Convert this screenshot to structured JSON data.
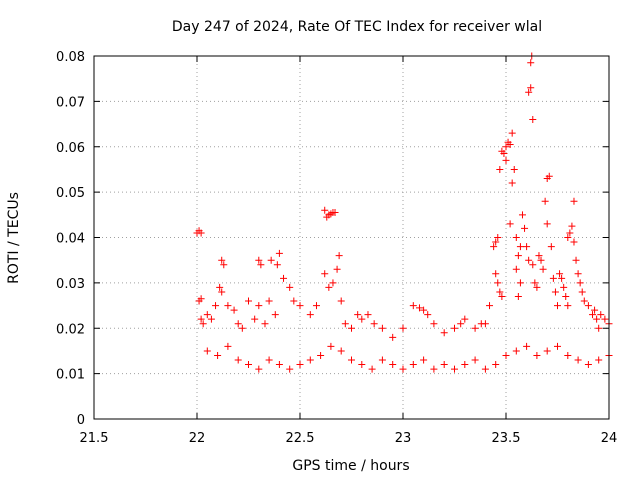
{
  "chart_data": {
    "type": "scatter",
    "title": "Day 247 of 2024, Rate Of TEC Index for receiver wlal",
    "xlabel": "GPS time / hours",
    "ylabel": "ROTI / TECUs",
    "xlim": [
      21.5,
      24
    ],
    "ylim": [
      0,
      0.08
    ],
    "x_ticks": [
      21.5,
      22,
      22.5,
      23,
      23.5,
      24
    ],
    "y_ticks": [
      0,
      0.01,
      0.02,
      0.03,
      0.04,
      0.05,
      0.06,
      0.07,
      0.08
    ],
    "x_tick_labels": [
      "21.5",
      "22",
      "22.5",
      "23",
      "23.5",
      "24"
    ],
    "y_tick_labels": [
      "0",
      "0.01",
      "0.02",
      "0.03",
      "0.04",
      "0.05",
      "0.06",
      "0.07",
      "0.08"
    ],
    "grid": true,
    "marker": "+",
    "marker_color": "#ff0000",
    "series": [
      {
        "name": "ROTI",
        "points": [
          [
            22.0,
            0.041
          ],
          [
            22.01,
            0.0415
          ],
          [
            22.02,
            0.041
          ],
          [
            22.01,
            0.026
          ],
          [
            22.02,
            0.0265
          ],
          [
            22.02,
            0.022
          ],
          [
            22.03,
            0.021
          ],
          [
            22.05,
            0.023
          ],
          [
            22.07,
            0.022
          ],
          [
            22.09,
            0.025
          ],
          [
            22.11,
            0.029
          ],
          [
            22.12,
            0.028
          ],
          [
            22.12,
            0.035
          ],
          [
            22.13,
            0.034
          ],
          [
            22.15,
            0.025
          ],
          [
            22.18,
            0.024
          ],
          [
            22.2,
            0.021
          ],
          [
            22.22,
            0.02
          ],
          [
            22.25,
            0.026
          ],
          [
            22.28,
            0.022
          ],
          [
            22.3,
            0.025
          ],
          [
            22.33,
            0.021
          ],
          [
            22.35,
            0.026
          ],
          [
            22.38,
            0.023
          ],
          [
            22.3,
            0.035
          ],
          [
            22.31,
            0.034
          ],
          [
            22.36,
            0.035
          ],
          [
            22.39,
            0.034
          ],
          [
            22.4,
            0.0365
          ],
          [
            22.42,
            0.031
          ],
          [
            22.45,
            0.029
          ],
          [
            22.47,
            0.026
          ],
          [
            22.5,
            0.025
          ],
          [
            22.55,
            0.023
          ],
          [
            22.58,
            0.025
          ],
          [
            22.62,
            0.046
          ],
          [
            22.63,
            0.0445
          ],
          [
            22.64,
            0.045
          ],
          [
            22.65,
            0.0452
          ],
          [
            22.66,
            0.0455
          ],
          [
            22.67,
            0.0455
          ],
          [
            22.62,
            0.032
          ],
          [
            22.64,
            0.029
          ],
          [
            22.66,
            0.03
          ],
          [
            22.68,
            0.033
          ],
          [
            22.69,
            0.036
          ],
          [
            22.7,
            0.026
          ],
          [
            22.72,
            0.021
          ],
          [
            22.75,
            0.02
          ],
          [
            22.78,
            0.023
          ],
          [
            22.8,
            0.022
          ],
          [
            22.83,
            0.023
          ],
          [
            22.86,
            0.021
          ],
          [
            22.9,
            0.02
          ],
          [
            22.95,
            0.018
          ],
          [
            23.0,
            0.02
          ],
          [
            23.05,
            0.025
          ],
          [
            23.08,
            0.0245
          ],
          [
            23.1,
            0.024
          ],
          [
            23.12,
            0.023
          ],
          [
            23.15,
            0.021
          ],
          [
            23.2,
            0.019
          ],
          [
            23.25,
            0.02
          ],
          [
            23.28,
            0.021
          ],
          [
            23.3,
            0.022
          ],
          [
            23.35,
            0.02
          ],
          [
            23.38,
            0.021
          ],
          [
            23.4,
            0.021
          ],
          [
            23.42,
            0.025
          ],
          [
            23.44,
            0.038
          ],
          [
            23.45,
            0.039
          ],
          [
            23.46,
            0.04
          ],
          [
            23.45,
            0.032
          ],
          [
            23.46,
            0.03
          ],
          [
            23.47,
            0.028
          ],
          [
            23.48,
            0.027
          ],
          [
            23.47,
            0.055
          ],
          [
            23.48,
            0.059
          ],
          [
            23.49,
            0.0585
          ],
          [
            23.5,
            0.057
          ],
          [
            23.5,
            0.06
          ],
          [
            23.51,
            0.061
          ],
          [
            23.52,
            0.0605
          ],
          [
            23.53,
            0.063
          ],
          [
            23.53,
            0.052
          ],
          [
            23.54,
            0.055
          ],
          [
            23.52,
            0.043
          ],
          [
            23.55,
            0.04
          ],
          [
            23.57,
            0.038
          ],
          [
            23.56,
            0.036
          ],
          [
            23.55,
            0.033
          ],
          [
            23.56,
            0.027
          ],
          [
            23.57,
            0.03
          ],
          [
            23.58,
            0.045
          ],
          [
            23.59,
            0.042
          ],
          [
            23.6,
            0.038
          ],
          [
            23.61,
            0.035
          ],
          [
            23.61,
            0.072
          ],
          [
            23.62,
            0.073
          ],
          [
            23.62,
            0.0785
          ],
          [
            23.625,
            0.08
          ],
          [
            23.63,
            0.066
          ],
          [
            23.63,
            0.034
          ],
          [
            23.64,
            0.03
          ],
          [
            23.65,
            0.029
          ],
          [
            23.66,
            0.036
          ],
          [
            23.67,
            0.035
          ],
          [
            23.68,
            0.033
          ],
          [
            23.69,
            0.048
          ],
          [
            23.7,
            0.053
          ],
          [
            23.71,
            0.0535
          ],
          [
            23.7,
            0.043
          ],
          [
            23.72,
            0.038
          ],
          [
            23.73,
            0.031
          ],
          [
            23.74,
            0.028
          ],
          [
            23.75,
            0.025
          ],
          [
            23.76,
            0.032
          ],
          [
            23.77,
            0.031
          ],
          [
            23.78,
            0.029
          ],
          [
            23.79,
            0.027
          ],
          [
            23.8,
            0.025
          ],
          [
            23.8,
            0.04
          ],
          [
            23.81,
            0.041
          ],
          [
            23.82,
            0.0425
          ],
          [
            23.83,
            0.048
          ],
          [
            23.83,
            0.039
          ],
          [
            23.84,
            0.035
          ],
          [
            23.85,
            0.032
          ],
          [
            23.86,
            0.03
          ],
          [
            23.87,
            0.028
          ],
          [
            23.88,
            0.026
          ],
          [
            23.9,
            0.025
          ],
          [
            23.92,
            0.023
          ],
          [
            23.94,
            0.022
          ],
          [
            23.96,
            0.023
          ],
          [
            23.98,
            0.022
          ],
          [
            24.0,
            0.021
          ],
          [
            23.93,
            0.024
          ],
          [
            23.95,
            0.02
          ],
          [
            22.05,
            0.015
          ],
          [
            22.1,
            0.014
          ],
          [
            22.15,
            0.016
          ],
          [
            22.2,
            0.013
          ],
          [
            22.25,
            0.012
          ],
          [
            22.3,
            0.011
          ],
          [
            22.35,
            0.013
          ],
          [
            22.4,
            0.012
          ],
          [
            22.45,
            0.011
          ],
          [
            22.5,
            0.012
          ],
          [
            22.55,
            0.013
          ],
          [
            22.6,
            0.014
          ],
          [
            22.65,
            0.016
          ],
          [
            22.7,
            0.015
          ],
          [
            22.75,
            0.013
          ],
          [
            22.8,
            0.012
          ],
          [
            22.85,
            0.011
          ],
          [
            22.9,
            0.013
          ],
          [
            22.95,
            0.012
          ],
          [
            23.0,
            0.011
          ],
          [
            23.05,
            0.012
          ],
          [
            23.1,
            0.013
          ],
          [
            23.15,
            0.011
          ],
          [
            23.2,
            0.012
          ],
          [
            23.25,
            0.011
          ],
          [
            23.3,
            0.012
          ],
          [
            23.35,
            0.013
          ],
          [
            23.4,
            0.011
          ],
          [
            23.45,
            0.012
          ],
          [
            23.5,
            0.014
          ],
          [
            23.55,
            0.015
          ],
          [
            23.6,
            0.016
          ],
          [
            23.65,
            0.014
          ],
          [
            23.7,
            0.015
          ],
          [
            23.75,
            0.016
          ],
          [
            23.8,
            0.014
          ],
          [
            23.85,
            0.013
          ],
          [
            23.9,
            0.012
          ],
          [
            23.95,
            0.013
          ],
          [
            24.0,
            0.014
          ]
        ]
      }
    ]
  }
}
